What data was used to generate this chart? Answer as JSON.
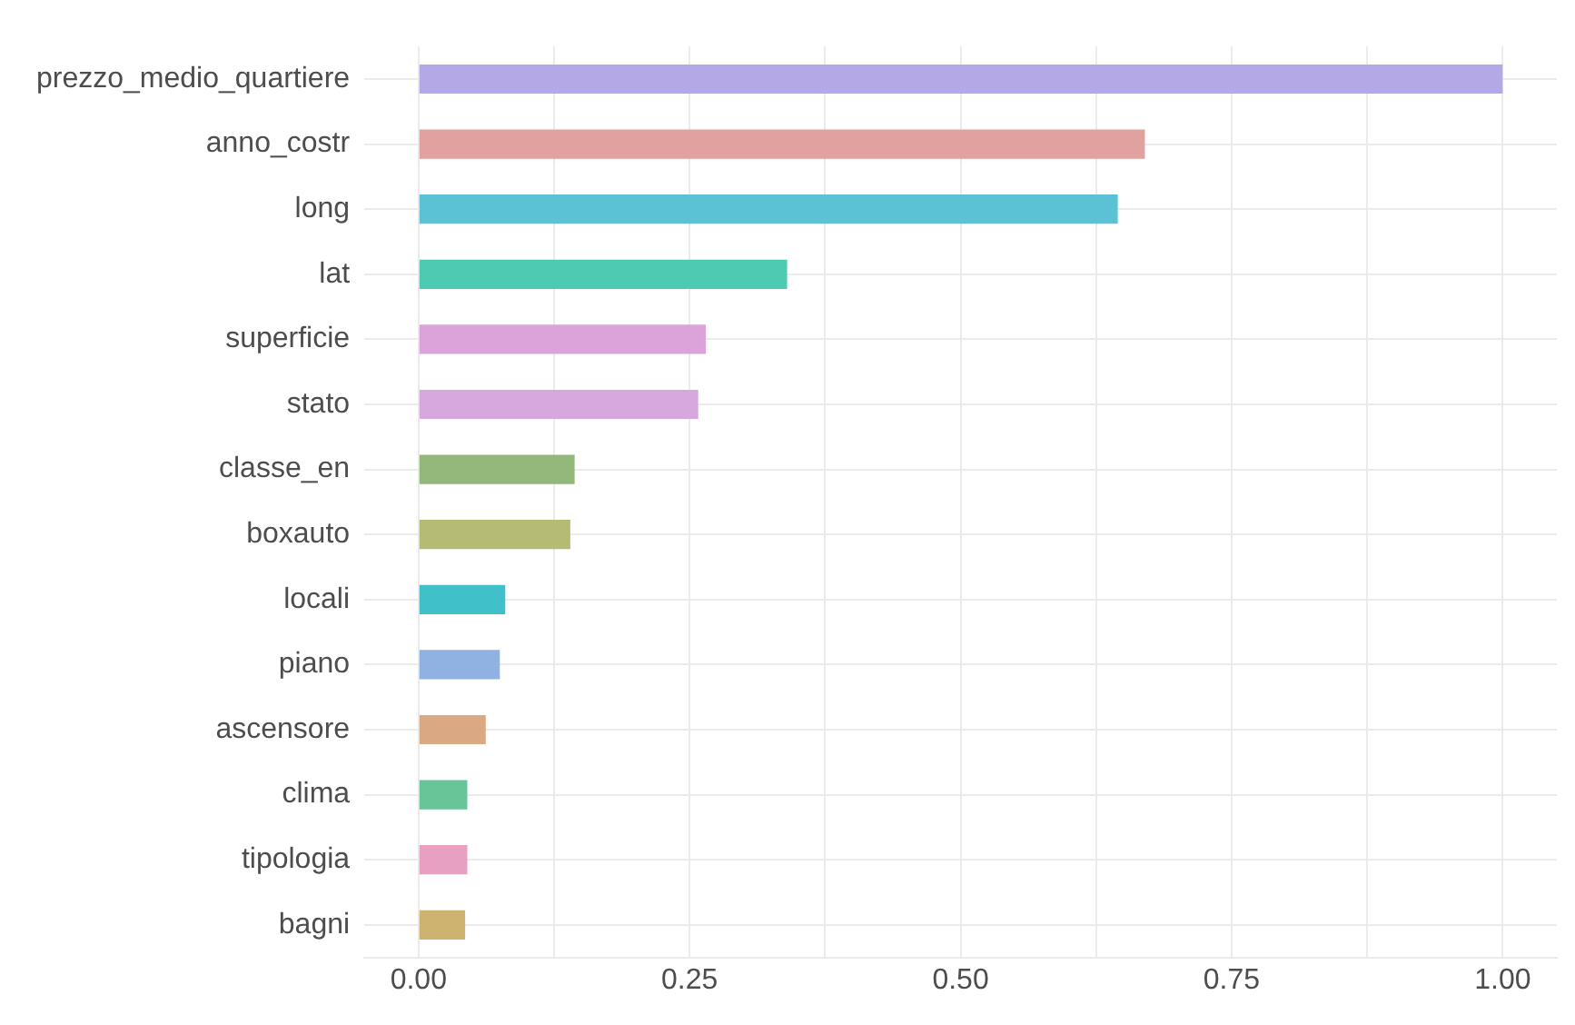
{
  "chart_data": {
    "type": "bar",
    "orientation": "horizontal",
    "categories": [
      "prezzo_medio_quartiere",
      "anno_costr",
      "long",
      "lat",
      "superficie",
      "stato",
      "classe_en",
      "boxauto",
      "locali",
      "piano",
      "ascensore",
      "clima",
      "tipologia",
      "bagni"
    ],
    "values": [
      1.0,
      0.67,
      0.645,
      0.34,
      0.265,
      0.258,
      0.144,
      0.14,
      0.08,
      0.075,
      0.062,
      0.045,
      0.045,
      0.043
    ],
    "colors": [
      "#b4a8e6",
      "#e0a19f",
      "#5bc2d6",
      "#4fcab2",
      "#dba3d9",
      "#d6a8de",
      "#93b87b",
      "#b5bb74",
      "#40c0c8",
      "#8fb2e3",
      "#dba884",
      "#67c597",
      "#e8a0c0",
      "#cdb36f"
    ],
    "xlim": [
      -0.05,
      1.05
    ],
    "xticks": [
      {
        "value": 0,
        "label": "0.00"
      },
      {
        "value": 0.125,
        "label": null
      },
      {
        "value": 0.25,
        "label": "0.25"
      },
      {
        "value": 0.375,
        "label": null
      },
      {
        "value": 0.5,
        "label": "0.50"
      },
      {
        "value": 0.625,
        "label": null
      },
      {
        "value": 0.75,
        "label": "0.75"
      },
      {
        "value": 0.875,
        "label": null
      },
      {
        "value": 1,
        "label": "1.00"
      }
    ],
    "grid": true
  }
}
